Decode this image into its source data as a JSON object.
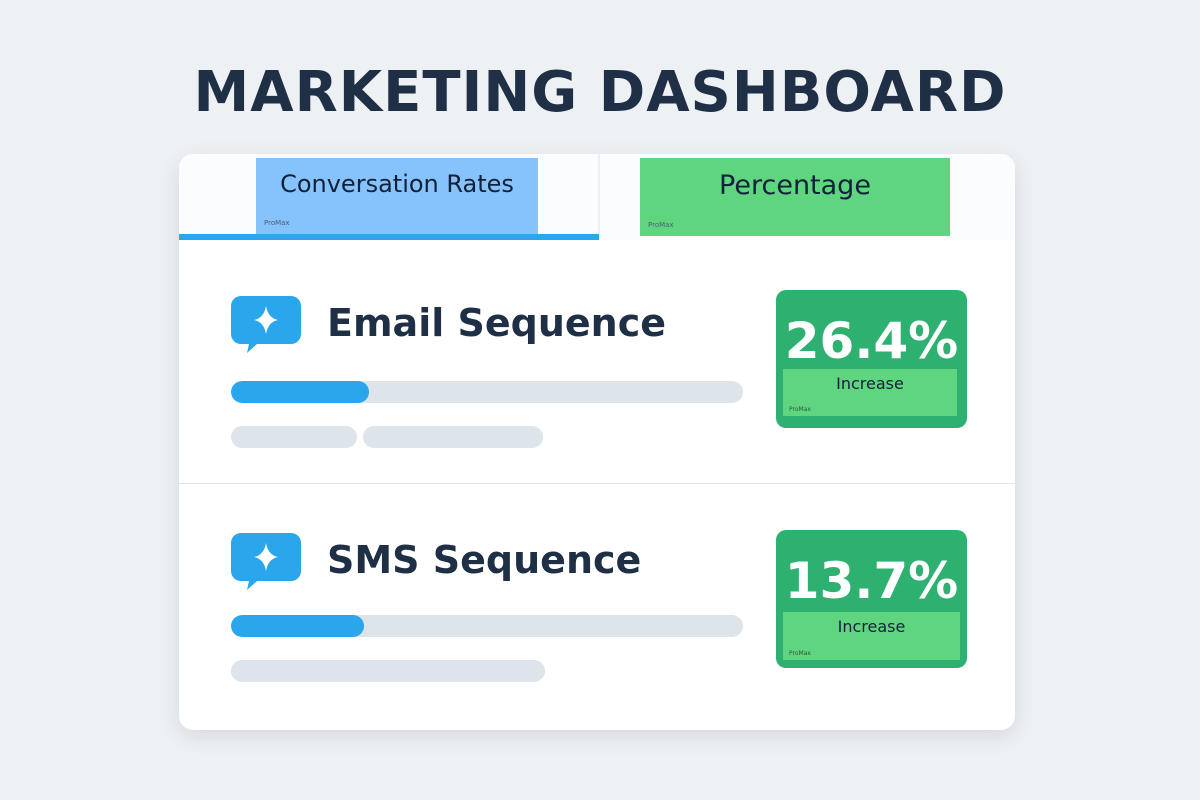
{
  "page": {
    "title": "MARKETING DASHBOARD"
  },
  "tabs": [
    {
      "label": "Conversation Rates",
      "watermark": "ProMax",
      "active": true,
      "color": "#86c2fb"
    },
    {
      "label": "Percentage",
      "watermark": "ProMax",
      "active": false,
      "color": "#5fd57f"
    }
  ],
  "rows": [
    {
      "title": "Email Sequence",
      "icon": "chat-sparkle-icon",
      "progress": 0.27,
      "stat": {
        "value": "26.4%",
        "label": "Increase",
        "watermark": "ProMax"
      }
    },
    {
      "title": "SMS Sequence",
      "icon": "chat-sparkle-icon",
      "progress": 0.26,
      "stat": {
        "value": "13.7%",
        "label": "Increase",
        "watermark": "ProMax"
      }
    }
  ],
  "colors": {
    "accent": "#2aa6ec",
    "stat_green": "#2db070",
    "label_green": "#5fd57f",
    "title": "#1f2f46"
  }
}
